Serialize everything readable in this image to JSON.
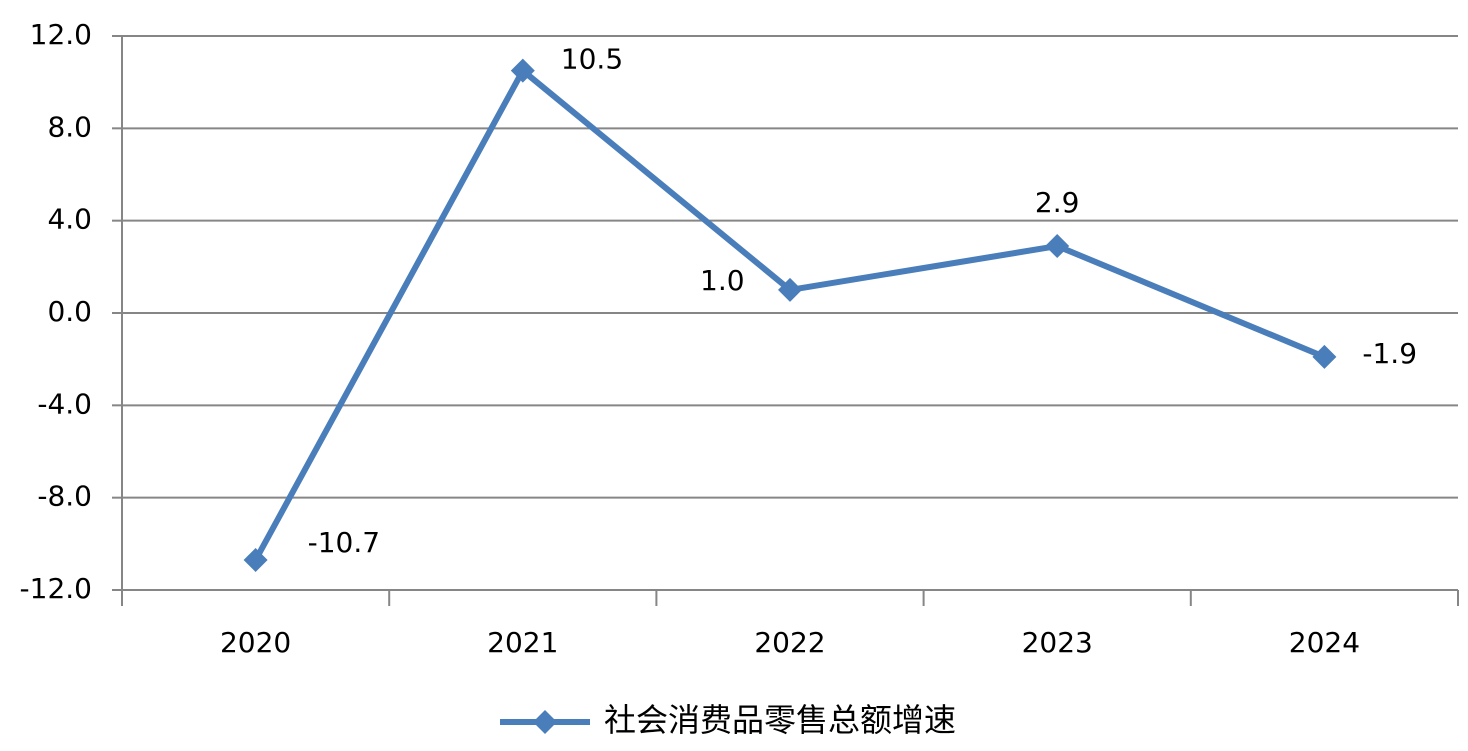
{
  "chart_data": {
    "type": "line",
    "categories": [
      "2020",
      "2021",
      "2022",
      "2023",
      "2024"
    ],
    "series": [
      {
        "name": "社会消费品零售总额增速",
        "color": "#4a7ebb",
        "values": [
          -10.7,
          10.5,
          1.0,
          2.9,
          -1.9
        ],
        "value_labels": [
          "-10.7",
          "10.5",
          "1.0",
          "2.9",
          "-1.9"
        ]
      }
    ],
    "ylim": [
      -12,
      12
    ],
    "yticks": [
      {
        "value": -12,
        "label": "-12.0"
      },
      {
        "value": -8,
        "label": "-8.0"
      },
      {
        "value": -4,
        "label": "-4.0"
      },
      {
        "value": 0,
        "label": "0.0"
      },
      {
        "value": 4,
        "label": "4.0"
      },
      {
        "value": 8,
        "label": "8.0"
      },
      {
        "value": 12,
        "label": "12.0"
      }
    ],
    "grid": true,
    "legend": "bottom"
  }
}
